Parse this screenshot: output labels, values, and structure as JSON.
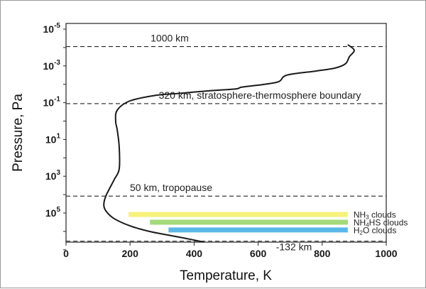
{
  "chart_data": {
    "type": "line",
    "xlabel": "Temperature, K",
    "ylabel": "Pressure, Pa",
    "xlim": [
      0,
      1000
    ],
    "ylim_log10": [
      -5,
      7
    ],
    "y_scale": "log",
    "y_inverted": true,
    "x_ticks": [
      0,
      200,
      400,
      600,
      800,
      1000
    ],
    "y_ticks": [
      {
        "base": "10",
        "exp": "-5",
        "log": -5
      },
      {
        "base": "10",
        "exp": "-3",
        "log": -3
      },
      {
        "base": "10",
        "exp": "-1",
        "log": -1
      },
      {
        "base": "10",
        "exp": "1",
        "log": 1
      },
      {
        "base": "10",
        "exp": "3",
        "log": 3
      },
      {
        "base": "10",
        "exp": "5",
        "log": 5
      }
    ],
    "grid": false,
    "legend": "none",
    "series": [
      {
        "color": "#1a1a1a",
        "points": [
          [
            430,
            6.58
          ],
          [
            380,
            6.4
          ],
          [
            320,
            6.2
          ],
          [
            260,
            6.0
          ],
          [
            200,
            5.7
          ],
          [
            150,
            5.3
          ],
          [
            125,
            4.9
          ],
          [
            118,
            4.55
          ],
          [
            125,
            4.05
          ],
          [
            150,
            3.2
          ],
          [
            166,
            2.6
          ],
          [
            166,
            1.4
          ],
          [
            160,
            0.5
          ],
          [
            155,
            0.0
          ],
          [
            160,
            -0.6
          ],
          [
            200,
            -1.1
          ],
          [
            280,
            -1.4
          ],
          [
            350,
            -1.5
          ],
          [
            450,
            -1.65
          ],
          [
            530,
            -1.75
          ],
          [
            550,
            -1.85
          ],
          [
            620,
            -2.0
          ],
          [
            665,
            -2.15
          ],
          [
            690,
            -2.5
          ],
          [
            780,
            -2.72
          ],
          [
            840,
            -2.88
          ],
          [
            873,
            -3.12
          ],
          [
            885,
            -3.5
          ],
          [
            900,
            -3.85
          ],
          [
            880,
            -4.15
          ]
        ]
      }
    ],
    "reference_lines": [
      {
        "log_p": -4.05,
        "label": "1000 km"
      },
      {
        "log_p": -0.95,
        "label": "320 km, stratosphere-thermosphere boundary"
      },
      {
        "log_p": 4.08,
        "label": "50 km, tropopause"
      },
      {
        "log_p": 6.53,
        "label": "-132  km"
      }
    ],
    "cloud_bands": [
      {
        "label_main": "NH",
        "label_sub": "3",
        "label_rest": " clouds",
        "x_start": 195,
        "x_end": 880,
        "log_p": 5.08,
        "color": "#f6f27a"
      },
      {
        "label_main": "NH",
        "label_sub": "4",
        "label_rest": "HS clouds",
        "x_start": 262,
        "x_end": 880,
        "log_p": 5.5,
        "color": "#a3d97a"
      },
      {
        "label_main": "H",
        "label_sub": "2",
        "label_rest": "O clouds",
        "x_start": 320,
        "x_end": 880,
        "log_p": 5.92,
        "color": "#5ab8e8"
      }
    ]
  }
}
